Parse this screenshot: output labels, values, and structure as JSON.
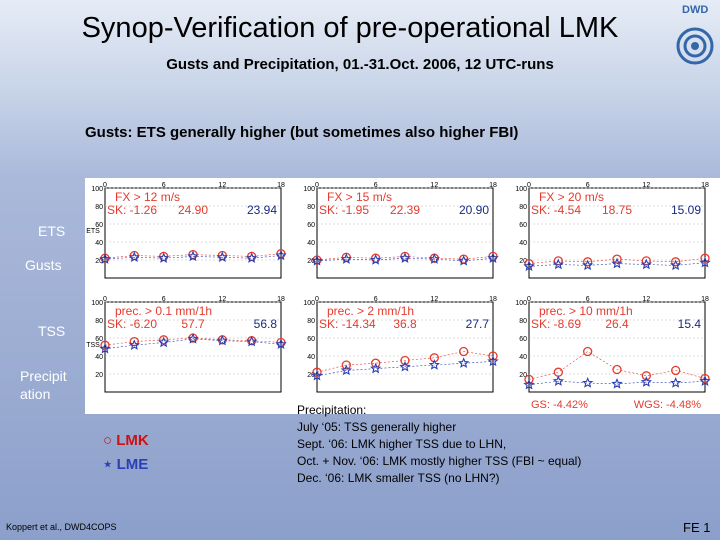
{
  "header": {
    "title": "Synop-Verification of pre-operational LMK",
    "subtitle": "Gusts and Precipitation, 01.-31.Oct. 2006, 12 UTC-runs",
    "logo_text": "DWD"
  },
  "headline": "Gusts: ETS generally higher (but sometimes also higher FBI)",
  "side_labels": {
    "ets": "ETS",
    "gusts": "Gusts",
    "tss": "TSS",
    "precip1": "Precipit",
    "precip2": "ation"
  },
  "chart_data": [
    {
      "type": "scatter",
      "title": "FX > 12 m/s",
      "ylabel": "ETS",
      "sk": "SK: -1.26",
      "value_lmk": "24.90",
      "value_lme": "23.94",
      "x": [
        0,
        3,
        6,
        9,
        12,
        15,
        18
      ],
      "x_ticks": [
        "0",
        "6",
        "12",
        "18"
      ],
      "y_ticks": [
        "100",
        "80",
        "60",
        "40",
        "20"
      ],
      "ylim": [
        0,
        100
      ],
      "series": [
        {
          "name": "LMK",
          "values": [
            22,
            25,
            24,
            26,
            25,
            24,
            27
          ]
        },
        {
          "name": "LME",
          "values": [
            21,
            23,
            22,
            24,
            23,
            22,
            25
          ]
        }
      ]
    },
    {
      "type": "scatter",
      "title": "FX > 15 m/s",
      "sk": "SK: -1.95",
      "value_lmk": "22.39",
      "value_lme": "20.90",
      "x": [
        0,
        3,
        6,
        9,
        12,
        15,
        18
      ],
      "x_ticks": [
        "0",
        "6",
        "12",
        "18"
      ],
      "y_ticks": [
        "100",
        "80",
        "60",
        "40",
        "20"
      ],
      "ylim": [
        0,
        100
      ],
      "series": [
        {
          "name": "LMK",
          "values": [
            20,
            23,
            22,
            24,
            22,
            21,
            24
          ]
        },
        {
          "name": "LME",
          "values": [
            19,
            21,
            20,
            22,
            21,
            19,
            22
          ]
        }
      ]
    },
    {
      "type": "scatter",
      "title": "FX > 20 m/s",
      "sk": "SK: -4.54",
      "value_lmk": "18.75",
      "value_lme": "15.09",
      "x": [
        0,
        3,
        6,
        9,
        12,
        15,
        18
      ],
      "x_ticks": [
        "0",
        "6",
        "12",
        "18"
      ],
      "y_ticks": [
        "100",
        "80",
        "60",
        "40",
        "20"
      ],
      "ylim": [
        0,
        100
      ],
      "series": [
        {
          "name": "LMK",
          "values": [
            16,
            19,
            18,
            21,
            19,
            18,
            22
          ]
        },
        {
          "name": "LME",
          "values": [
            13,
            15,
            14,
            16,
            15,
            14,
            17
          ]
        }
      ]
    },
    {
      "type": "scatter",
      "title": "prec. > 0.1 mm/1h",
      "ylabel": "TSS",
      "sk": "SK: -6.20",
      "value_lmk": "57.7",
      "value_lme": "56.8",
      "x": [
        0,
        3,
        6,
        9,
        12,
        15,
        18
      ],
      "x_ticks": [
        "0",
        "6",
        "12",
        "18"
      ],
      "y_ticks": [
        "100",
        "80",
        "60",
        "40",
        "20"
      ],
      "ylim": [
        0,
        100
      ],
      "series": [
        {
          "name": "LMK",
          "values": [
            52,
            56,
            58,
            60,
            58,
            57,
            55
          ]
        },
        {
          "name": "LME",
          "values": [
            48,
            52,
            55,
            59,
            57,
            56,
            53
          ]
        }
      ]
    },
    {
      "type": "scatter",
      "title": "prec. > 2 mm/1h",
      "sk": "SK: -14.34",
      "value_lmk": "36.8",
      "value_lme": "27.7",
      "x": [
        0,
        3,
        6,
        9,
        12,
        15,
        18
      ],
      "x_ticks": [
        "0",
        "6",
        "12",
        "18"
      ],
      "y_ticks": [
        "100",
        "80",
        "60",
        "40",
        "20"
      ],
      "ylim": [
        0,
        100
      ],
      "series": [
        {
          "name": "LMK",
          "values": [
            22,
            30,
            32,
            35,
            38,
            45,
            40
          ]
        },
        {
          "name": "LME",
          "values": [
            18,
            24,
            26,
            28,
            30,
            32,
            34
          ]
        }
      ]
    },
    {
      "type": "scatter",
      "title": "prec. > 10 mm/1h",
      "sk": "SK: -8.69",
      "value_lmk": "26.4",
      "value_lme": "15.4",
      "gs": "GS: -4.42%",
      "wgs": "WGS: -4.48%",
      "x": [
        0,
        3,
        6,
        9,
        12,
        15,
        18
      ],
      "x_ticks": [
        "0",
        "6",
        "12",
        "18"
      ],
      "y_ticks": [
        "100",
        "80",
        "60",
        "40",
        "20"
      ],
      "ylim": [
        0,
        100
      ],
      "series": [
        {
          "name": "LMK",
          "values": [
            14,
            22,
            45,
            25,
            18,
            24,
            15
          ]
        },
        {
          "name": "LME",
          "values": [
            8,
            12,
            10,
            9,
            11,
            10,
            12
          ]
        }
      ]
    }
  ],
  "legend": {
    "lmk_symbol": "○",
    "lmk_label": "LMK",
    "lme_symbol": "⋆",
    "lme_label": "LME"
  },
  "notes": [
    "Precipitation:",
    "July ‘05: TSS generally higher",
    "Sept. ‘06: LMK higher TSS due to LHN,",
    "Oct. + Nov. ‘06: LMK mostly higher TSS (FBI ~ equal)",
    "Dec. ‘06: LMK smaller TSS (no LHN?)"
  ],
  "footer": {
    "left": "Koppert et al., DWD4COPS",
    "right": "FE 1"
  },
  "colors": {
    "lmk": "#e33b2e",
    "lme": "#2a3fb5",
    "panel_text": "#e33b2e"
  }
}
